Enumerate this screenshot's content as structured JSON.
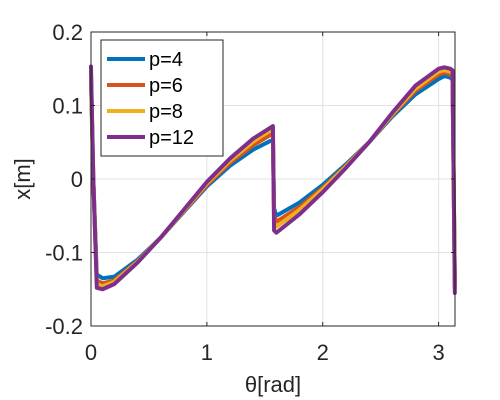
{
  "chart_data": {
    "type": "line",
    "title": "",
    "xlabel": "θ[rad]",
    "ylabel": "x[m]",
    "xlim": [
      0,
      3.1416
    ],
    "ylim": [
      -0.2,
      0.2
    ],
    "xticks": [
      0,
      1,
      2,
      3
    ],
    "xtick_labels": [
      "0",
      "1",
      "2",
      "3"
    ],
    "yticks": [
      -0.2,
      -0.1,
      0,
      0.1,
      0.2
    ],
    "ytick_labels": [
      "-0.2",
      "-0.1",
      "0",
      "0.1",
      "0.2"
    ],
    "grid": true,
    "legend_position": "top-left",
    "series": [
      {
        "name": "p=4",
        "color": "#0072bd",
        "x": [
          0.0,
          0.02,
          0.05,
          0.1,
          0.2,
          0.4,
          0.6,
          0.8,
          1.0,
          1.2,
          1.4,
          1.55,
          1.57,
          1.58,
          1.6,
          1.8,
          2.0,
          2.2,
          2.4,
          2.6,
          2.8,
          3.0,
          3.05,
          3.1,
          3.12,
          3.13,
          3.14
        ],
        "y": [
          0.135,
          0.0,
          -0.13,
          -0.135,
          -0.133,
          -0.11,
          -0.08,
          -0.045,
          -0.01,
          0.018,
          0.04,
          0.052,
          0.052,
          -0.04,
          -0.05,
          -0.032,
          -0.008,
          0.02,
          0.05,
          0.085,
          0.115,
          0.136,
          0.14,
          0.138,
          0.135,
          0.0,
          -0.14
        ]
      },
      {
        "name": "p=6",
        "color": "#d95319",
        "x": [
          0.0,
          0.02,
          0.05,
          0.1,
          0.2,
          0.4,
          0.6,
          0.8,
          1.0,
          1.2,
          1.4,
          1.55,
          1.57,
          1.58,
          1.6,
          1.8,
          2.0,
          2.2,
          2.4,
          2.6,
          2.8,
          3.0,
          3.05,
          3.1,
          3.12,
          3.13,
          3.14
        ],
        "y": [
          0.142,
          0.0,
          -0.138,
          -0.142,
          -0.138,
          -0.112,
          -0.08,
          -0.044,
          -0.008,
          0.022,
          0.046,
          0.06,
          0.062,
          -0.05,
          -0.058,
          -0.038,
          -0.012,
          0.018,
          0.05,
          0.087,
          0.12,
          0.142,
          0.145,
          0.142,
          0.14,
          0.0,
          -0.145
        ]
      },
      {
        "name": "p=8",
        "color": "#edb120",
        "x": [
          0.0,
          0.02,
          0.05,
          0.1,
          0.2,
          0.4,
          0.6,
          0.8,
          1.0,
          1.2,
          1.4,
          1.55,
          1.57,
          1.58,
          1.6,
          1.8,
          2.0,
          2.2,
          2.4,
          2.6,
          2.8,
          3.0,
          3.05,
          3.1,
          3.12,
          3.13,
          3.14
        ],
        "y": [
          0.145,
          0.0,
          -0.143,
          -0.146,
          -0.14,
          -0.113,
          -0.08,
          -0.043,
          -0.006,
          0.025,
          0.051,
          0.066,
          0.068,
          -0.06,
          -0.065,
          -0.042,
          -0.014,
          0.017,
          0.05,
          0.088,
          0.123,
          0.146,
          0.148,
          0.146,
          0.144,
          0.0,
          -0.148
        ]
      },
      {
        "name": "p=12",
        "color": "#7e2f8e",
        "x": [
          0.0,
          0.02,
          0.05,
          0.1,
          0.2,
          0.4,
          0.6,
          0.8,
          1.0,
          1.2,
          1.4,
          1.55,
          1.57,
          1.58,
          1.6,
          1.8,
          2.0,
          2.2,
          2.4,
          2.6,
          2.8,
          3.0,
          3.05,
          3.1,
          3.12,
          3.13,
          3.14
        ],
        "y": [
          0.153,
          0.0,
          -0.148,
          -0.15,
          -0.143,
          -0.114,
          -0.08,
          -0.042,
          -0.004,
          0.028,
          0.055,
          0.07,
          0.072,
          -0.07,
          -0.073,
          -0.048,
          -0.018,
          0.015,
          0.05,
          0.09,
          0.127,
          0.15,
          0.152,
          0.15,
          0.148,
          0.0,
          -0.155
        ]
      }
    ]
  }
}
